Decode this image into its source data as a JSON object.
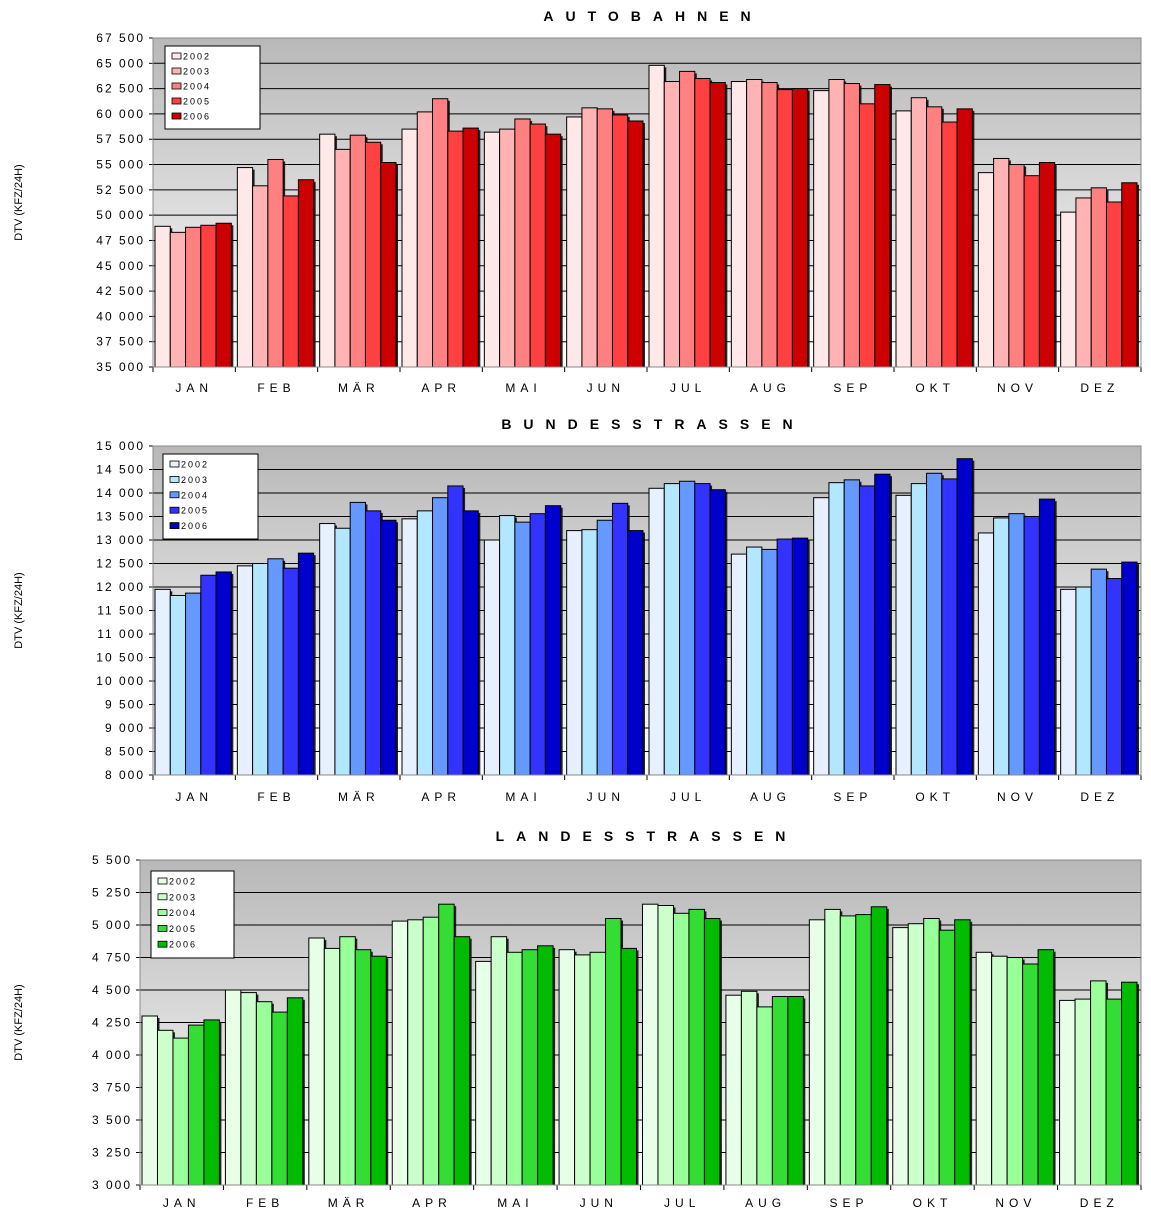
{
  "chart_data": [
    {
      "type": "bar",
      "title": "AUTOBAHNEN",
      "ylabel": "DTV (KFZ/24H)",
      "ylim": [
        35000,
        67500
      ],
      "ytick_step": 2500,
      "yticks": [
        "35 000",
        "37 500",
        "40 000",
        "42 500",
        "45 000",
        "47 500",
        "50 000",
        "52 500",
        "55 000",
        "57 500",
        "60 000",
        "62 500",
        "65 000",
        "67 500"
      ],
      "grid": true,
      "legend_position": "top-left",
      "categories": [
        "JAN",
        "FEB",
        "MÄR",
        "APR",
        "MAI",
        "JUN",
        "JUL",
        "AUG",
        "SEP",
        "OKT",
        "NOV",
        "DEZ"
      ],
      "series": [
        {
          "name": "2002",
          "color": "#ffe8e8",
          "values": [
            48900,
            54700,
            58000,
            58500,
            58200,
            59700,
            64800,
            63200,
            62300,
            60300,
            54200,
            50300
          ]
        },
        {
          "name": "2003",
          "color": "#ffb3b3",
          "values": [
            48300,
            52900,
            56500,
            60200,
            58500,
            60600,
            63200,
            63400,
            63400,
            61600,
            55600,
            51700
          ]
        },
        {
          "name": "2004",
          "color": "#ff8080",
          "values": [
            48800,
            55500,
            57900,
            61500,
            59500,
            60500,
            64200,
            63100,
            63000,
            60700,
            55000,
            52700
          ]
        },
        {
          "name": "2005",
          "color": "#ff4040",
          "values": [
            49000,
            51900,
            57200,
            58300,
            59000,
            59900,
            63500,
            62400,
            61000,
            59200,
            53900,
            51300
          ]
        },
        {
          "name": "2006",
          "color": "#cc0000",
          "values": [
            49200,
            53500,
            55200,
            58600,
            58000,
            59300,
            63100,
            62500,
            62900,
            60500,
            55200,
            53200
          ]
        }
      ]
    },
    {
      "type": "bar",
      "title": "BUNDESSTRASSEN",
      "ylabel": "DTV (KFZ/24H)",
      "ylim": [
        8000,
        15000
      ],
      "ytick_step": 500,
      "yticks": [
        "8 000",
        "8 500",
        "9 000",
        "9 500",
        "10 000",
        "10 500",
        "11 000",
        "11 500",
        "12 000",
        "12 500",
        "13 000",
        "13 500",
        "14 000",
        "14 500",
        "15 000"
      ],
      "grid": true,
      "legend_position": "top-left",
      "categories": [
        "JAN",
        "FEB",
        "MÄR",
        "APR",
        "MAI",
        "JUN",
        "JUL",
        "AUG",
        "SEP",
        "OKT",
        "NOV",
        "DEZ"
      ],
      "series": [
        {
          "name": "2002",
          "color": "#e6f0ff",
          "values": [
            11950,
            12450,
            13350,
            13450,
            13000,
            13200,
            14100,
            12700,
            13900,
            13950,
            13150,
            11950
          ]
        },
        {
          "name": "2003",
          "color": "#b3e6ff",
          "values": [
            11820,
            12500,
            13250,
            13620,
            13520,
            13220,
            14200,
            12850,
            14220,
            14200,
            13470,
            12000
          ]
        },
        {
          "name": "2004",
          "color": "#6699ff",
          "values": [
            11870,
            12600,
            13800,
            13900,
            13380,
            13420,
            14250,
            12800,
            14280,
            14420,
            13560,
            12380
          ]
        },
        {
          "name": "2005",
          "color": "#3333ff",
          "values": [
            12250,
            12400,
            13620,
            14150,
            13560,
            13780,
            14200,
            13020,
            14150,
            14300,
            13500,
            12180
          ]
        },
        {
          "name": "2006",
          "color": "#0000cc",
          "values": [
            12320,
            12720,
            13420,
            13620,
            13730,
            13200,
            14070,
            13040,
            14400,
            14730,
            13870,
            12530
          ]
        }
      ]
    },
    {
      "type": "bar",
      "title": "LANDESSTRASSEN",
      "ylabel": "DTV (KFZ/24H)",
      "ylim": [
        3000,
        5500
      ],
      "ytick_step": 250,
      "yticks": [
        "3 000",
        "3 250",
        "3 500",
        "3 750",
        "4 000",
        "4 250",
        "4 500",
        "4 750",
        "5 000",
        "5 250",
        "5 500"
      ],
      "grid": true,
      "legend_position": "top-left",
      "categories": [
        "JAN",
        "FEB",
        "MÄR",
        "APR",
        "MAI",
        "JUN",
        "JUL",
        "AUG",
        "SEP",
        "OKT",
        "NOV",
        "DEZ"
      ],
      "series": [
        {
          "name": "2002",
          "color": "#e6ffe6",
          "values": [
            4300,
            4500,
            4900,
            5030,
            4720,
            4810,
            5160,
            4460,
            5040,
            4980,
            4790,
            4420
          ]
        },
        {
          "name": "2003",
          "color": "#ccffcc",
          "values": [
            4190,
            4480,
            4820,
            5040,
            4910,
            4770,
            5150,
            4490,
            5120,
            5010,
            4760,
            4430
          ]
        },
        {
          "name": "2004",
          "color": "#99ff99",
          "values": [
            4130,
            4410,
            4910,
            5060,
            4790,
            4790,
            5090,
            4370,
            5070,
            5050,
            4750,
            4570
          ]
        },
        {
          "name": "2005",
          "color": "#33dd33",
          "values": [
            4230,
            4330,
            4810,
            5160,
            4810,
            5050,
            5120,
            4450,
            5080,
            4960,
            4700,
            4430
          ]
        },
        {
          "name": "2006",
          "color": "#00bb00",
          "values": [
            4270,
            4440,
            4760,
            4910,
            4840,
            4820,
            5050,
            4450,
            5140,
            5040,
            4810,
            4560
          ]
        }
      ]
    }
  ]
}
